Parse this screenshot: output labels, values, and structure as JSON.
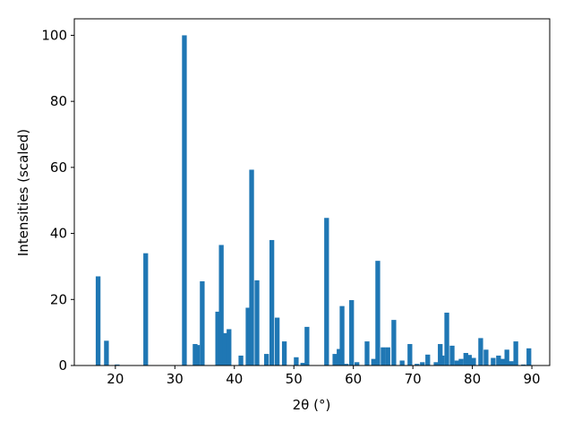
{
  "chart_data": {
    "type": "bar",
    "x_label": "2θ (°)",
    "y_label": "Intensities (scaled)",
    "color": "#1f77b4",
    "bar_width": 0.8,
    "xlim": [
      13.1,
      93.0
    ],
    "ylim": [
      0,
      105
    ],
    "xticks": [
      20,
      30,
      40,
      50,
      60,
      70,
      80,
      90
    ],
    "yticks": [
      0,
      20,
      40,
      60,
      80,
      100
    ],
    "x": [
      17.1,
      18.5,
      20.3,
      25.1,
      31.6,
      33.4,
      33.8,
      34.6,
      37.2,
      37.8,
      38.4,
      39.1,
      41.1,
      42.3,
      42.9,
      43.8,
      45.4,
      46.3,
      47.2,
      48.4,
      50.4,
      51.5,
      52.2,
      55.5,
      56.9,
      57.6,
      58.1,
      58.8,
      59.7,
      60.6,
      62.3,
      63.4,
      64.1,
      65.0,
      65.8,
      66.8,
      68.2,
      69.5,
      70.7,
      71.6,
      72.5,
      73.9,
      74.6,
      74.9,
      75.7,
      76.6,
      77.4,
      78.1,
      78.9,
      79.5,
      80.2,
      81.4,
      82.3,
      83.5,
      84.4,
      85.2,
      85.8,
      86.5,
      87.3,
      88.6,
      89.5
    ],
    "values": [
      27,
      7.5,
      0.3,
      34,
      100,
      6.5,
      6.2,
      25.5,
      16.3,
      36.5,
      9.8,
      11,
      3,
      17.5,
      59.3,
      25.8,
      3.5,
      38,
      14.5,
      7.3,
      2.5,
      0.8,
      11.7,
      44.7,
      3.5,
      5,
      18,
      0.5,
      19.8,
      1,
      7.3,
      2,
      31.7,
      5.5,
      5.5,
      13.8,
      1.5,
      6.5,
      0.5,
      1,
      3.3,
      1,
      6.5,
      3,
      16,
      6,
      1.5,
      2,
      3.8,
      3.2,
      2.3,
      8.3,
      4.8,
      2.3,
      3,
      2,
      4.8,
      1.3,
      7.3,
      0.3,
      5.2
    ]
  }
}
